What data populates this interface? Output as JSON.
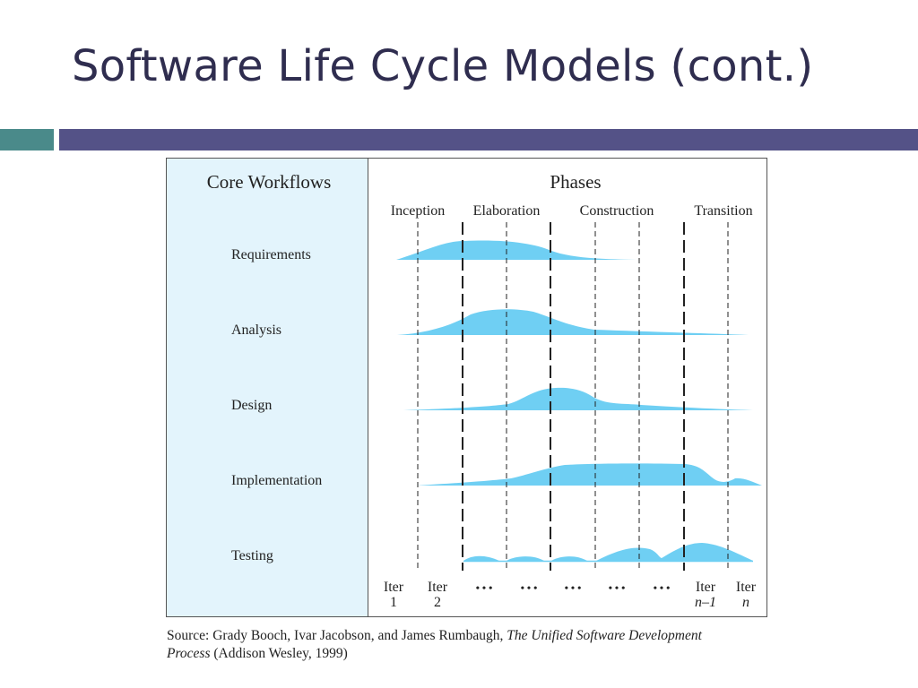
{
  "slide": {
    "title": "Software Life Cycle Models (cont.)"
  },
  "figure": {
    "left_header": "Core Workflows",
    "right_header": "Phases",
    "phases": [
      "Inception",
      "Elaboration",
      "Construction",
      "Transition"
    ],
    "workflows": [
      "Requirements",
      "Analysis",
      "Design",
      "Implementation",
      "Testing"
    ],
    "iterations": {
      "iter_label": "Iter",
      "first": "1",
      "second": "2",
      "ellipsis": "• • •",
      "second_last": "n–1",
      "last": "n"
    },
    "colors": {
      "panel": "#e3f4fc",
      "hump": "#6fcff3",
      "border": "#555555"
    }
  },
  "caption": {
    "prefix": "Source: Grady Booch, Ivar Jacobson, and James Rumbaugh, ",
    "book_title": "The Unified Software Development Process",
    "suffix": " (Addison Wesley, 1999)"
  }
}
